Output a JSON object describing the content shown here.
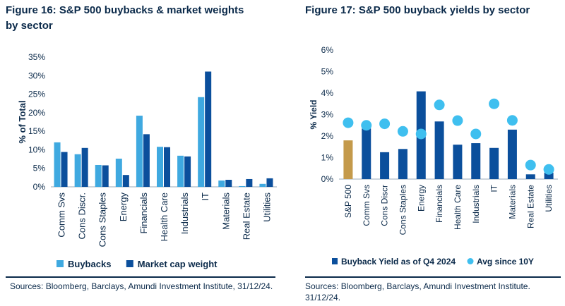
{
  "figures": [
    {
      "title_line1": "Figure 16: S&P 500 buybacks & market weights",
      "title_line2": "by sector",
      "sources": "Sources: Bloomberg, Barclays, Amundi Investment Institute, 31/12/24."
    },
    {
      "title_line1": "Figure 17: S&P 500 buyback yields by sector",
      "title_line2": "",
      "sources": "Sources: Bloomberg, Barclays, Amundi Investment Institute. 31/12/24."
    }
  ],
  "chart_data": [
    {
      "type": "bar",
      "title": "Figure 16: S&P 500 buybacks & market weights by sector",
      "xlabel": "",
      "ylabel": "% of Total",
      "ylim": [
        0,
        35
      ],
      "yticks": [
        "0%",
        "5%",
        "10%",
        "15%",
        "20%",
        "25%",
        "30%",
        "35%"
      ],
      "categories": [
        "Comm Svs",
        "Cons Discr.",
        "Cons Staples",
        "Energy",
        "Financials",
        "Health Care",
        "Industrials",
        "IT",
        "Materials",
        "Real Estate",
        "Utilities"
      ],
      "series": [
        {
          "name": "Buybacks",
          "color": "#3fa9e0",
          "values": [
            12.0,
            8.8,
            5.9,
            7.6,
            19.2,
            10.8,
            8.4,
            24.2,
            1.7,
            0.2,
            0.8
          ]
        },
        {
          "name": "Market cap weight",
          "color": "#0b4f9c",
          "values": [
            9.4,
            10.5,
            5.8,
            3.2,
            14.2,
            10.7,
            8.2,
            31.1,
            1.9,
            2.1,
            2.3
          ]
        }
      ],
      "legend": "bottom",
      "grid": false
    },
    {
      "type": "bar",
      "title": "Figure 17: S&P 500 buyback yields by sector",
      "xlabel": "",
      "ylabel": "% Yield",
      "ylim": [
        0,
        6
      ],
      "yticks": [
        "0%",
        "1%",
        "2%",
        "3%",
        "4%",
        "5%",
        "6%"
      ],
      "categories": [
        "S&P 500",
        "Comm Svs",
        "Cons Discr",
        "Cons Staples",
        "Energy",
        "Financials",
        "Health Care",
        "Industrials",
        "IT",
        "Materials",
        "Real Estate",
        "Utilities"
      ],
      "series": [
        {
          "name": "Buyback Yield as of Q4 2024",
          "color": "#0b4f9c",
          "highlight_color": "#c49a4b",
          "values": [
            1.8,
            2.35,
            1.25,
            1.4,
            4.08,
            2.68,
            1.6,
            1.67,
            1.45,
            2.3,
            0.22,
            0.3
          ]
        },
        {
          "name": "Avg since 10Y",
          "color": "#3fbfef",
          "marker": "circle",
          "values": [
            2.62,
            2.5,
            2.57,
            2.22,
            2.1,
            3.45,
            2.72,
            2.1,
            3.5,
            2.73,
            0.65,
            0.45
          ]
        }
      ],
      "legend": "bottom",
      "grid": false
    }
  ]
}
